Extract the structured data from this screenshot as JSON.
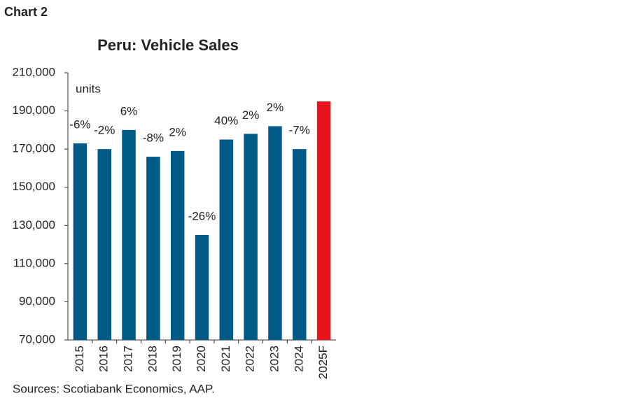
{
  "chart_data": {
    "type": "bar",
    "header": "Chart 2",
    "title": "Peru: Vehicle Sales",
    "y_unit_label": "units",
    "source": "Sources: Scotiabank Economics, AAP.",
    "categories": [
      "2015",
      "2016",
      "2017",
      "2018",
      "2019",
      "2020",
      "2021",
      "2022",
      "2023",
      "2024",
      "2025F"
    ],
    "values": [
      173000,
      170000,
      180000,
      166000,
      169000,
      125000,
      175000,
      178000,
      182000,
      170000,
      195000
    ],
    "colors": [
      "#005a87",
      "#005a87",
      "#005a87",
      "#005a87",
      "#005a87",
      "#005a87",
      "#005a87",
      "#005a87",
      "#005a87",
      "#005a87",
      "#e8141c"
    ],
    "annotations": [
      "-6%",
      "-2%",
      "6%",
      "-8%",
      "2%",
      "-26%",
      "40%",
      "2%",
      "2%",
      "-7%",
      null
    ],
    "ylim": [
      70000,
      210000
    ],
    "yticks": [
      {
        "value": 70000,
        "label": "70,000"
      },
      {
        "value": 90000,
        "label": "90,000"
      },
      {
        "value": 110000,
        "label": "110,000"
      },
      {
        "value": 130000,
        "label": "130,000"
      },
      {
        "value": 150000,
        "label": "150,000"
      },
      {
        "value": 170000,
        "label": "170,000"
      },
      {
        "value": 190000,
        "label": "190,000"
      },
      {
        "value": 210000,
        "label": "210,000"
      }
    ],
    "grid": false
  }
}
